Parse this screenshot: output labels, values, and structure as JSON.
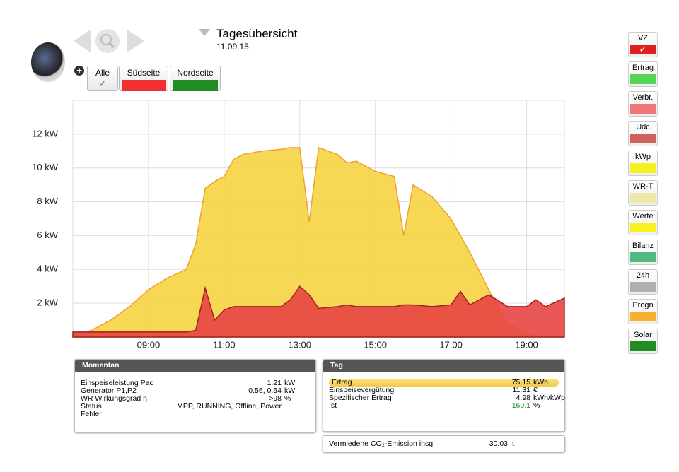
{
  "header": {
    "title": "Tagesübersicht",
    "date": "11.09.15"
  },
  "tabs": [
    "Alle",
    "Südseite",
    "Nordseite"
  ],
  "sidebar": [
    {
      "label": "VZ",
      "color": "#e02020"
    },
    {
      "label": "Ertrag",
      "color": "#55d455"
    },
    {
      "label": "Verbr.",
      "color": "#f07878"
    },
    {
      "label": "Udc",
      "color": "#d06060"
    },
    {
      "label": "kWp",
      "color": "#f5f020"
    },
    {
      "label": "WR-T",
      "color": "#f0e8a8"
    },
    {
      "label": "Werte",
      "color": "#f8f020"
    },
    {
      "label": "Bilanz",
      "color": "#50b880"
    },
    {
      "label": "24h",
      "color": "#b0b0b0"
    },
    {
      "label": "Progn",
      "color": "#f8b030"
    },
    {
      "label": "Solar",
      "color": "#228b22"
    }
  ],
  "chart_data": {
    "type": "area",
    "x": [
      7,
      7.5,
      8,
      8.5,
      9,
      9.5,
      10,
      10.25,
      10.5,
      10.75,
      11,
      11.25,
      11.5,
      12,
      12.5,
      12.75,
      13,
      13.25,
      13.5,
      14,
      14.25,
      14.5,
      15,
      15.5,
      15.75,
      16,
      16.5,
      17,
      17.25,
      17.5,
      18,
      18.5,
      19,
      19.25,
      19.5,
      20
    ],
    "series": [
      {
        "color": "#f5d443",
        "values": [
          0.1,
          0.4,
          1.0,
          1.8,
          2.8,
          3.5,
          4.0,
          5.5,
          8.8,
          9.2,
          9.5,
          10.5,
          10.8,
          11.0,
          11.1,
          11.2,
          11.2,
          6.8,
          11.2,
          10.8,
          10.3,
          10.4,
          9.8,
          9.5,
          6.0,
          9.0,
          8.3,
          7.0,
          6.0,
          5.0,
          2.8,
          0.8,
          0.2,
          0.1,
          0,
          0
        ]
      },
      {
        "color": "#e84545",
        "values": [
          0.3,
          0.3,
          0.3,
          0.3,
          0.3,
          0.3,
          0.3,
          0.4,
          2.9,
          1.0,
          1.6,
          1.8,
          1.8,
          1.8,
          1.8,
          2.2,
          3.0,
          2.5,
          1.7,
          1.8,
          1.9,
          1.8,
          1.8,
          1.8,
          1.9,
          1.9,
          1.8,
          1.9,
          2.7,
          1.9,
          2.5,
          1.8,
          1.8,
          2.2,
          1.8,
          2.3
        ]
      }
    ],
    "xlim": [
      7,
      20
    ],
    "xticks": [
      {
        "value": 9,
        "label": "09:00"
      },
      {
        "value": 11,
        "label": "11:00"
      },
      {
        "value": 13,
        "label": "13:00"
      },
      {
        "value": 15,
        "label": "15:00"
      },
      {
        "value": 17,
        "label": "17:00"
      },
      {
        "value": 19,
        "label": "19:00"
      }
    ],
    "ylim": [
      0,
      14
    ],
    "yticks": [
      {
        "value": 2,
        "label": "2 kW"
      },
      {
        "value": 4,
        "label": "4 kW"
      },
      {
        "value": 6,
        "label": "6 kW"
      },
      {
        "value": 8,
        "label": "8 kW"
      },
      {
        "value": 10,
        "label": "10 kW"
      },
      {
        "value": 12,
        "label": "12 kW"
      }
    ],
    "grid": true
  },
  "momentan": {
    "title": "Momentan",
    "rows": [
      [
        "Einspeiseleistung Pac",
        "1.21",
        "kW"
      ],
      [
        "Generator P1,P2",
        "0.56, 0.54",
        "kW"
      ],
      [
        "WR Wirkungsgrad η",
        ">98",
        "%"
      ],
      [
        "Status",
        "MPP, RUNNING, Offline, Power"
      ],
      [
        "Fehler"
      ]
    ]
  },
  "tag": {
    "title": "Tag",
    "rows": [
      [
        "Ertrag",
        "75.15",
        "kWh"
      ],
      [
        "Einspeisevergütung",
        "11.31",
        "€"
      ],
      [
        "Spezifischer Ertrag",
        "4.98",
        "kWh/kWp"
      ],
      [
        "Ist",
        "160.1",
        "%"
      ]
    ]
  },
  "co2": [
    "Vermiedene CO₂-Emission insg.",
    "30.03",
    "t"
  ]
}
